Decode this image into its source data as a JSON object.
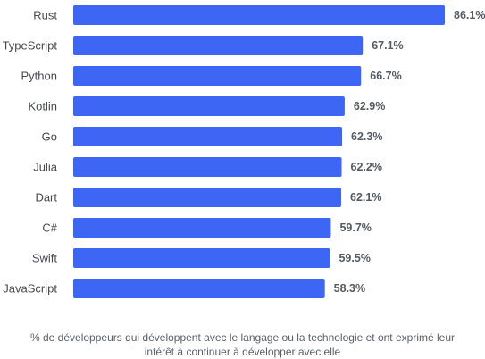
{
  "chart_data": {
    "type": "bar",
    "orientation": "horizontal",
    "categories": [
      "Rust",
      "TypeScript",
      "Python",
      "Kotlin",
      "Go",
      "Julia",
      "Dart",
      "C#",
      "Swift",
      "JavaScript"
    ],
    "values": [
      86.1,
      67.1,
      66.7,
      62.9,
      62.3,
      62.2,
      62.1,
      59.7,
      59.5,
      58.3
    ],
    "value_labels": [
      "86.1%",
      "67.1%",
      "66.7%",
      "62.9%",
      "62.3%",
      "62.2%",
      "62.1%",
      "59.7%",
      "59.5%",
      "58.3%"
    ],
    "xlim": [
      0,
      86.1
    ],
    "grid": false,
    "color": "#3d66f5"
  },
  "caption": {
    "line1": "% de développeurs qui développent avec le langage ou la technologie et ont exprimé leur",
    "line2": "intérêt à continuer à développer avec elle"
  }
}
